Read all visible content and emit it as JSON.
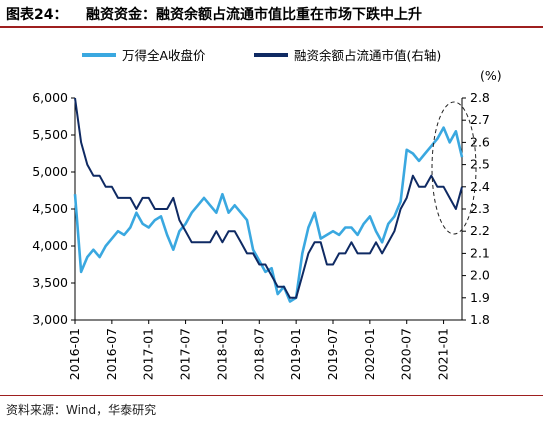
{
  "header": {
    "label": "图表24：",
    "title": "融资资金：融资余额占流通市值比重在市场下跌中上升"
  },
  "footer": {
    "source": "资料来源：Wind，华泰研究"
  },
  "colors": {
    "series_light": "#3aa8e0",
    "series_dark": "#0f2a63",
    "accent_rule": "#9e1f1f"
  },
  "chart_data": {
    "type": "line",
    "x_ticks": [
      "2016-01",
      "2016-07",
      "2017-01",
      "2017-07",
      "2018-01",
      "2018-07",
      "2019-01",
      "2019-07",
      "2020-01",
      "2020-07",
      "2021-01"
    ],
    "left_axis": {
      "ylim": [
        3000,
        6000
      ],
      "ticks": [
        "3,000",
        "3,500",
        "4,000",
        "4,500",
        "5,000",
        "5,500",
        "6,000"
      ],
      "tick_values": [
        3000,
        3500,
        4000,
        4500,
        5000,
        5500,
        6000
      ]
    },
    "right_axis": {
      "unit": "(%)",
      "ylim": [
        1.8,
        2.8
      ],
      "ticks": [
        "1.8",
        "1.9",
        "2.0",
        "2.1",
        "2.2",
        "2.3",
        "2.4",
        "2.5",
        "2.6",
        "2.7",
        "2.8"
      ],
      "tick_values": [
        1.8,
        1.9,
        2.0,
        2.1,
        2.2,
        2.3,
        2.4,
        2.5,
        2.6,
        2.7,
        2.8
      ]
    },
    "series": [
      {
        "name": "万得全A收盘价",
        "axis": "left",
        "x": [
          "2016-01",
          "2016-02",
          "2016-03",
          "2016-04",
          "2016-05",
          "2016-06",
          "2016-07",
          "2016-08",
          "2016-09",
          "2016-10",
          "2016-11",
          "2016-12",
          "2017-01",
          "2017-02",
          "2017-03",
          "2017-04",
          "2017-05",
          "2017-06",
          "2017-07",
          "2017-08",
          "2017-09",
          "2017-10",
          "2017-11",
          "2017-12",
          "2018-01",
          "2018-02",
          "2018-03",
          "2018-04",
          "2018-05",
          "2018-06",
          "2018-07",
          "2018-08",
          "2018-09",
          "2018-10",
          "2018-11",
          "2018-12",
          "2019-01",
          "2019-02",
          "2019-03",
          "2019-04",
          "2019-05",
          "2019-06",
          "2019-07",
          "2019-08",
          "2019-09",
          "2019-10",
          "2019-11",
          "2019-12",
          "2020-01",
          "2020-02",
          "2020-03",
          "2020-04",
          "2020-05",
          "2020-06",
          "2020-07",
          "2020-08",
          "2020-09",
          "2020-10",
          "2020-11",
          "2020-12",
          "2021-01",
          "2021-02",
          "2021-03",
          "2021-04"
        ],
        "values": [
          4700,
          3650,
          3850,
          3950,
          3850,
          4000,
          4100,
          4200,
          4150,
          4250,
          4450,
          4300,
          4250,
          4350,
          4400,
          4150,
          3950,
          4200,
          4300,
          4450,
          4550,
          4650,
          4550,
          4450,
          4700,
          4450,
          4550,
          4450,
          4350,
          3950,
          3800,
          3650,
          3700,
          3350,
          3450,
          3250,
          3300,
          3900,
          4250,
          4450,
          4100,
          4150,
          4200,
          4150,
          4250,
          4250,
          4150,
          4300,
          4400,
          4200,
          4050,
          4300,
          4400,
          4600,
          5300,
          5250,
          5150,
          5250,
          5350,
          5450,
          5600,
          5400,
          5550,
          5200
        ]
      },
      {
        "name": "融资余额占流通市值(右轴)",
        "axis": "right",
        "x": [
          "2016-01",
          "2016-02",
          "2016-03",
          "2016-04",
          "2016-05",
          "2016-06",
          "2016-07",
          "2016-08",
          "2016-09",
          "2016-10",
          "2016-11",
          "2016-12",
          "2017-01",
          "2017-02",
          "2017-03",
          "2017-04",
          "2017-05",
          "2017-06",
          "2017-07",
          "2017-08",
          "2017-09",
          "2017-10",
          "2017-11",
          "2017-12",
          "2018-01",
          "2018-02",
          "2018-03",
          "2018-04",
          "2018-05",
          "2018-06",
          "2018-07",
          "2018-08",
          "2018-09",
          "2018-10",
          "2018-11",
          "2018-12",
          "2019-01",
          "2019-02",
          "2019-03",
          "2019-04",
          "2019-05",
          "2019-06",
          "2019-07",
          "2019-08",
          "2019-09",
          "2019-10",
          "2019-11",
          "2019-12",
          "2020-01",
          "2020-02",
          "2020-03",
          "2020-04",
          "2020-05",
          "2020-06",
          "2020-07",
          "2020-08",
          "2020-09",
          "2020-10",
          "2020-11",
          "2020-12",
          "2021-01",
          "2021-02",
          "2021-03",
          "2021-04"
        ],
        "values": [
          2.8,
          2.6,
          2.5,
          2.45,
          2.45,
          2.4,
          2.4,
          2.35,
          2.35,
          2.35,
          2.3,
          2.35,
          2.35,
          2.3,
          2.3,
          2.3,
          2.35,
          2.25,
          2.2,
          2.15,
          2.15,
          2.15,
          2.15,
          2.2,
          2.15,
          2.2,
          2.2,
          2.15,
          2.1,
          2.1,
          2.05,
          2.05,
          2.0,
          1.95,
          1.95,
          1.9,
          1.9,
          2.0,
          2.1,
          2.15,
          2.15,
          2.05,
          2.05,
          2.1,
          2.1,
          2.15,
          2.1,
          2.1,
          2.1,
          2.15,
          2.1,
          2.15,
          2.2,
          2.3,
          2.35,
          2.45,
          2.4,
          2.4,
          2.45,
          2.4,
          2.4,
          2.35,
          2.3,
          2.4
        ]
      }
    ],
    "legend_placement": "top",
    "grid": false,
    "annotation": "dashed-ellipse-highlight-2021"
  }
}
